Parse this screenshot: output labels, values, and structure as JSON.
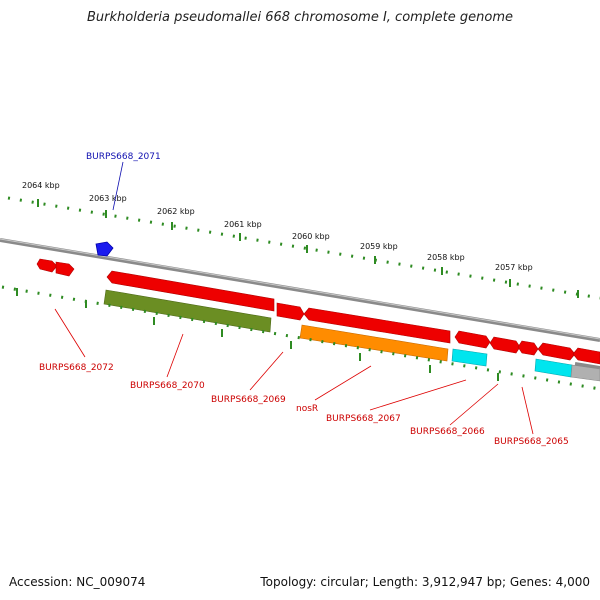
{
  "title": "Burkholderia pseudomallei 668 chromosome I, complete genome",
  "accession": "Accession: NC_009074",
  "stats": "Topology: circular; Length: 3,912,947 bp; Genes: 4,000",
  "ticks": [
    "2064 kbp",
    "2063 kbp",
    "2062 kbp",
    "2061 kbp",
    "2060 kbp",
    "2059 kbp",
    "2058 kbp",
    "2057 kbp"
  ],
  "labels": {
    "b2071": "BURPS668_2071",
    "b2072": "BURPS668_2072",
    "b2070": "BURPS668_2070",
    "b2069": "BURPS668_2069",
    "nosR": "nosR",
    "b2067": "BURPS668_2067",
    "b2066": "BURPS668_2066",
    "b2065": "BURPS668_2065"
  },
  "colors": {
    "forward_gene": "#ee0000",
    "reverse_label": "#1010b0",
    "gene_label": "#cc0000",
    "olive": "#6b8e23",
    "orange": "#ff8c00",
    "cyan": "#00e5ee",
    "grey": "#b0b0b0",
    "backbone": "#8a8a8a"
  }
}
